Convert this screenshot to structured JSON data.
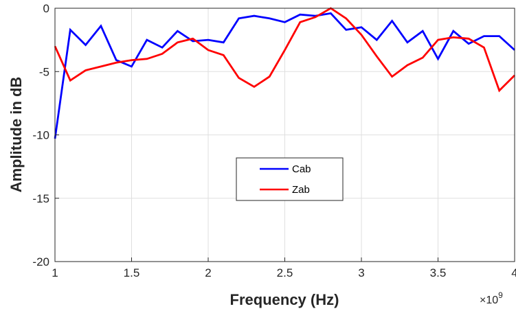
{
  "chart_data": {
    "type": "line",
    "title": "",
    "xlabel": "Frequency (Hz)",
    "ylabel": "Amplitude in dB",
    "x_multiplier_label": "×10",
    "x_multiplier_exponent": "9",
    "xlim": [
      1,
      4
    ],
    "ylim": [
      -20,
      0
    ],
    "x_ticks": [
      1,
      1.5,
      2,
      2.5,
      3,
      3.5,
      4
    ],
    "x_tick_labels": [
      "1",
      "1.5",
      "2",
      "2.5",
      "3",
      "3.5",
      "4"
    ],
    "y_ticks": [
      0,
      -5,
      -10,
      -15,
      -20
    ],
    "y_tick_labels": [
      "0",
      "-5",
      "-10",
      "-15",
      "-20"
    ],
    "grid": true,
    "legend_position": "center",
    "series": [
      {
        "name": "Cab",
        "color": "#0000ff",
        "x": [
          1.0,
          1.1,
          1.2,
          1.3,
          1.4,
          1.5,
          1.6,
          1.7,
          1.8,
          1.9,
          2.0,
          2.1,
          2.2,
          2.3,
          2.4,
          2.5,
          2.6,
          2.7,
          2.8,
          2.9,
          3.0,
          3.1,
          3.2,
          3.3,
          3.4,
          3.5,
          3.6,
          3.7,
          3.8,
          3.9,
          4.0
        ],
        "y": [
          -10.3,
          -1.7,
          -2.9,
          -1.4,
          -4.1,
          -4.6,
          -2.5,
          -3.1,
          -1.8,
          -2.6,
          -2.5,
          -2.7,
          -0.8,
          -0.6,
          -0.8,
          -1.1,
          -0.5,
          -0.6,
          -0.4,
          -1.7,
          -1.5,
          -2.5,
          -1.0,
          -2.7,
          -1.8,
          -4.0,
          -1.8,
          -2.8,
          -2.2,
          -2.2,
          -3.3
        ]
      },
      {
        "name": "Zab",
        "color": "#ff0000",
        "x": [
          1.0,
          1.1,
          1.2,
          1.3,
          1.4,
          1.5,
          1.6,
          1.7,
          1.8,
          1.9,
          2.0,
          2.1,
          2.2,
          2.3,
          2.4,
          2.5,
          2.6,
          2.7,
          2.8,
          2.9,
          3.0,
          3.1,
          3.2,
          3.3,
          3.4,
          3.5,
          3.6,
          3.7,
          3.8,
          3.9,
          4.0
        ],
        "y": [
          -3.0,
          -5.7,
          -4.9,
          -4.6,
          -4.3,
          -4.1,
          -4.0,
          -3.6,
          -2.7,
          -2.4,
          -3.3,
          -3.7,
          -5.5,
          -6.2,
          -5.4,
          -3.3,
          -1.1,
          -0.7,
          0.0,
          -0.8,
          -2.1,
          -3.8,
          -5.4,
          -4.5,
          -3.9,
          -2.5,
          -2.3,
          -2.4,
          -3.1,
          -6.5,
          -5.3
        ]
      }
    ]
  }
}
